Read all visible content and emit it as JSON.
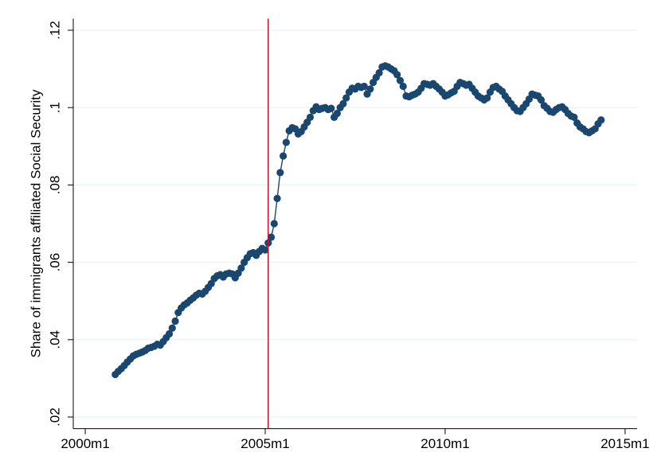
{
  "chart_data": {
    "type": "line",
    "y_label": "Share of immigrants affiliated Social Security",
    "x": [
      490,
      491,
      492,
      493,
      494,
      495,
      496,
      497,
      498,
      499,
      500,
      501,
      502,
      503,
      504,
      505,
      506,
      507,
      508,
      509,
      510,
      511,
      512,
      513,
      514,
      515,
      516,
      517,
      518,
      519,
      520,
      521,
      522,
      523,
      524,
      525,
      526,
      527,
      528,
      529,
      530,
      531,
      532,
      533,
      534,
      535,
      536,
      537,
      538,
      539,
      540,
      541,
      542,
      543,
      544,
      545,
      546,
      547,
      548,
      549,
      550,
      551,
      552,
      553,
      554,
      555,
      556,
      557,
      558,
      559,
      560,
      561,
      562,
      563,
      564,
      565,
      566,
      567,
      568,
      569,
      570,
      571,
      572,
      573,
      574,
      575,
      576,
      577,
      578,
      579,
      580,
      581,
      582,
      583,
      584,
      585,
      586,
      587,
      588,
      589,
      590,
      591,
      592,
      593,
      594,
      595,
      596,
      597,
      598,
      599,
      600,
      601,
      602,
      603,
      604,
      605,
      606,
      607,
      608,
      609,
      610,
      611,
      612,
      613,
      614,
      615,
      616,
      617,
      618,
      619,
      620,
      621,
      622,
      623,
      624,
      625,
      626,
      627,
      628,
      629,
      630,
      631,
      632,
      633,
      634,
      635,
      636,
      637,
      638,
      639,
      640,
      641,
      642,
      643,
      644,
      645,
      646,
      647,
      648,
      649,
      650,
      651,
      652
    ],
    "series": [
      {
        "color": "#1a476f",
        "values": [
          0.031,
          0.0318,
          0.0325,
          0.0333,
          0.0342,
          0.035,
          0.0358,
          0.0362,
          0.0365,
          0.0368,
          0.0372,
          0.0378,
          0.038,
          0.0383,
          0.0388,
          0.0386,
          0.0395,
          0.0405,
          0.0415,
          0.043,
          0.0448,
          0.047,
          0.0482,
          0.049,
          0.0495,
          0.0502,
          0.0508,
          0.0515,
          0.052,
          0.0518,
          0.0525,
          0.0535,
          0.0545,
          0.0558,
          0.0565,
          0.0568,
          0.0562,
          0.057,
          0.0572,
          0.057,
          0.056,
          0.0572,
          0.0585,
          0.06,
          0.0612,
          0.0622,
          0.0625,
          0.0618,
          0.0628,
          0.0636,
          0.0632,
          0.065,
          0.0665,
          0.07,
          0.0765,
          0.0832,
          0.0875,
          0.091,
          0.094,
          0.0948,
          0.0945,
          0.0932,
          0.0938,
          0.095,
          0.0962,
          0.0975,
          0.0992,
          0.1002,
          0.0995,
          0.0998,
          0.1,
          0.0995,
          0.0998,
          0.0975,
          0.0985,
          0.1,
          0.101,
          0.1025,
          0.104,
          0.105,
          0.1048,
          0.1055,
          0.1052,
          0.1055,
          0.1035,
          0.1048,
          0.1065,
          0.1078,
          0.109,
          0.1105,
          0.1108,
          0.1105,
          0.11,
          0.1095,
          0.1085,
          0.107,
          0.1055,
          0.103,
          0.1028,
          0.1032,
          0.1035,
          0.104,
          0.105,
          0.1062,
          0.106,
          0.1058,
          0.1062,
          0.1055,
          0.1048,
          0.104,
          0.103,
          0.1033,
          0.1038,
          0.1042,
          0.1055,
          0.1065,
          0.1062,
          0.1058,
          0.106,
          0.105,
          0.104,
          0.103,
          0.1025,
          0.102,
          0.1025,
          0.104,
          0.1052,
          0.1055,
          0.1048,
          0.1042,
          0.103,
          0.102,
          0.101,
          0.1,
          0.0992,
          0.099,
          0.1,
          0.101,
          0.1022,
          0.1035,
          0.1032,
          0.103,
          0.102,
          0.1005,
          0.0998,
          0.099,
          0.0988,
          0.0995,
          0.1,
          0.1002,
          0.0995,
          0.0985,
          0.0978,
          0.0975,
          0.096,
          0.095,
          0.0945,
          0.0938,
          0.0935,
          0.094,
          0.0945,
          0.0958,
          0.0968
        ]
      }
    ],
    "xline": 541,
    "xline_color": "#c8102e",
    "xlim": [
      476,
      664
    ],
    "xticks": [
      {
        "value": 480,
        "label": "2000m1"
      },
      {
        "value": 540,
        "label": "2005m1"
      },
      {
        "value": 600,
        "label": "2010m1"
      },
      {
        "value": 660,
        "label": "2015m1"
      }
    ],
    "ylim": [
      0.017,
      0.123
    ],
    "yticks": [
      {
        "value": 0.02,
        "label": ".02"
      },
      {
        "value": 0.04,
        "label": ".04"
      },
      {
        "value": 0.06,
        "label": ".06"
      },
      {
        "value": 0.08,
        "label": ".08"
      },
      {
        "value": 0.1,
        "label": ".1"
      },
      {
        "value": 0.12,
        "label": ".12"
      }
    ],
    "grid": true
  }
}
